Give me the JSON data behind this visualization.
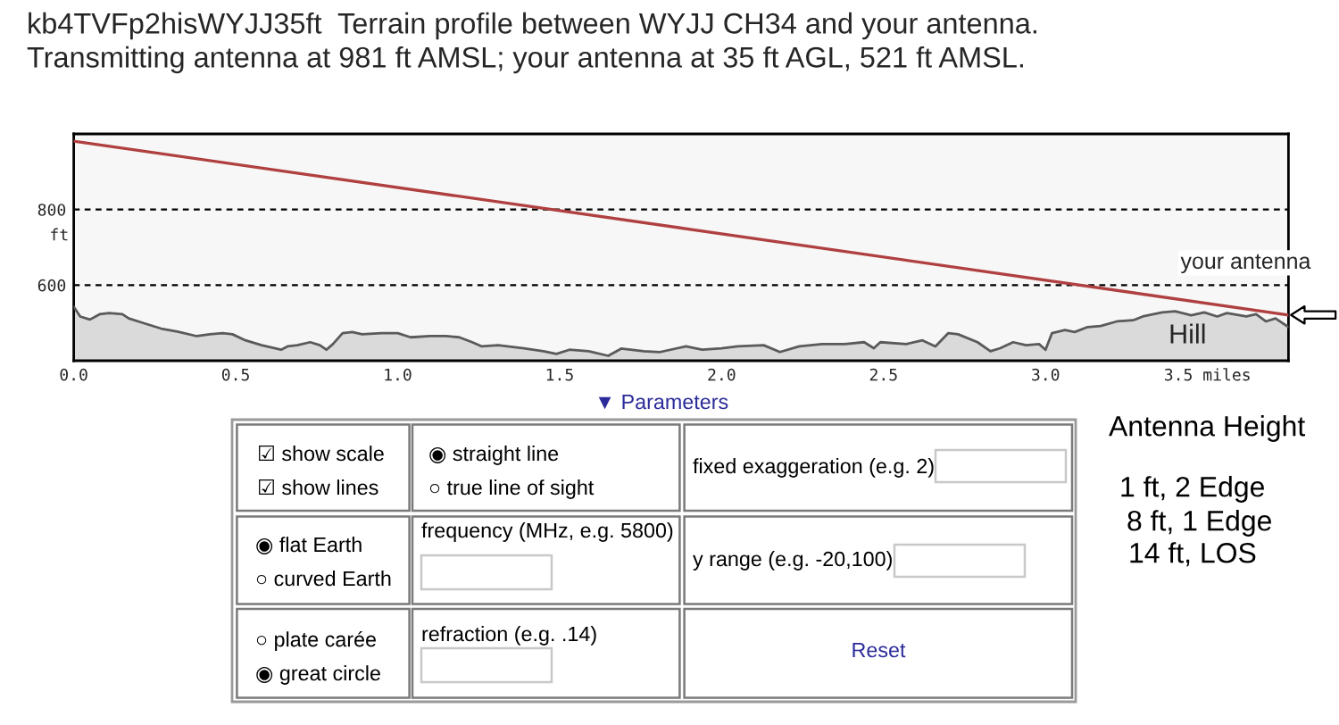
{
  "chart_data": [
    {
      "type": "area",
      "title": "kb4TVFp2hisWYJJ35ft  Terrain profile between WYJJ CH34 and your antenna.",
      "subtitle": "Transmitting antenna at 981 ft AMSL; your antenna at 35 ft AGL, 521 ft AMSL.",
      "ylabel": "ft",
      "xlim": [
        0,
        3.75
      ],
      "ylim": [
        400,
        1000
      ],
      "xticks": [
        {
          "value": 0,
          "label": "0.0"
        },
        0.5,
        {
          "value": 1,
          "label": "1.0"
        },
        1.5,
        {
          "value": 2,
          "label": "2.0"
        },
        2.5,
        {
          "value": 3,
          "label": "3.0"
        },
        {
          "value": 3.5,
          "label": "3.5 miles"
        }
      ],
      "yticks": [
        600,
        800
      ],
      "grid": "y",
      "series": [
        {
          "type": "area",
          "color": "#5a5a5a",
          "x": [
            0,
            0.02,
            0.05,
            0.08,
            0.11,
            0.15,
            0.17,
            0.21,
            0.27,
            0.32,
            0.38,
            0.42,
            0.46,
            0.49,
            0.53,
            0.58,
            0.64,
            0.66,
            0.69,
            0.73,
            0.76,
            0.78,
            0.8,
            0.83,
            0.86,
            0.89,
            0.95,
            1.0,
            1.04,
            1.1,
            1.15,
            1.19,
            1.23,
            1.26,
            1.31,
            1.39,
            1.45,
            1.49,
            1.53,
            1.59,
            1.65,
            1.69,
            1.76,
            1.81,
            1.89,
            1.94,
            2.0,
            2.05,
            2.13,
            2.18,
            2.24,
            2.31,
            2.38,
            2.44,
            2.47,
            2.49,
            2.57,
            2.62,
            2.66,
            2.7,
            2.73,
            2.79,
            2.83,
            2.86,
            2.9,
            2.94,
            2.98,
            3.0,
            3.02,
            3.06,
            3.09,
            3.13,
            3.17,
            3.22,
            3.27,
            3.3,
            3.36,
            3.4,
            3.45,
            3.49,
            3.53,
            3.56,
            3.62,
            3.65,
            3.68,
            3.71,
            3.75
          ],
          "values": [
            543,
            517,
            509,
            523,
            526,
            523,
            512,
            501,
            485,
            477,
            465,
            470,
            473,
            470,
            454,
            441,
            429,
            438,
            441,
            449,
            441,
            429,
            444,
            473,
            476,
            470,
            473,
            473,
            462,
            465,
            465,
            462,
            449,
            438,
            441,
            433,
            425,
            418,
            429,
            425,
            413,
            432,
            425,
            423,
            438,
            429,
            433,
            438,
            441,
            423,
            438,
            444,
            444,
            449,
            433,
            449,
            444,
            454,
            438,
            473,
            470,
            449,
            425,
            433,
            449,
            441,
            444,
            429,
            473,
            481,
            476,
            489,
            492,
            504,
            507,
            517,
            528,
            531,
            520,
            528,
            517,
            526,
            517,
            523,
            504,
            512,
            489
          ]
        },
        {
          "type": "line",
          "color": "#b04040",
          "x": [
            0,
            3.75
          ],
          "values": [
            981,
            521
          ]
        }
      ],
      "annotations": [
        {
          "text": "your antenna",
          "x": 3.75,
          "y": 521
        },
        {
          "text": "Hill",
          "x": 3.4,
          "y": 531
        }
      ]
    },
    {
      "type": "other",
      "annotations": [
        "▼ Parameters",
        "☑ show scale",
        "☑ show lines",
        "◉ straight line",
        "○ true line of sight",
        "fixed exaggeration (e.g. 2)",
        "◉ flat Earth",
        "○ curved Earth",
        "frequency (MHz, e.g. 5800)",
        "y range (e.g. -20,100)",
        "○ plate carée",
        "◉ great circle",
        "refraction (e.g. .14)",
        "Reset",
        "Antenna Height",
        "1 ft, 2 Edge",
        "8 ft, 1 Edge",
        "14 ft, LOS"
      ]
    }
  ]
}
